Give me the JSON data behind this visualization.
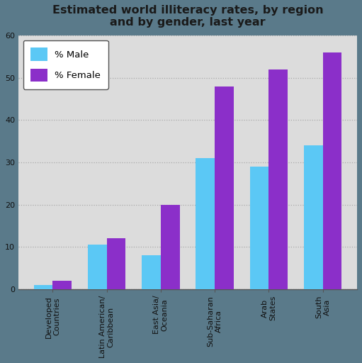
{
  "title": "Estimated world illiteracy rates, by region\nand by gender, last year",
  "categories": [
    "Developed\nCountries",
    "Latin American/\nCaribbean",
    "East Asia/\nOceania",
    "Sub-Saharan\nAfrica",
    "Arab\nStates",
    "South\nAsia"
  ],
  "male_values": [
    1,
    10.5,
    8,
    31,
    29,
    34
  ],
  "female_values": [
    2,
    12,
    20,
    48,
    52,
    56
  ],
  "male_color": "#5bc8f5",
  "female_color": "#8B2FC9",
  "legend_male": "% Male",
  "legend_female": "% Female",
  "ylim": [
    0,
    60
  ],
  "yticks": [
    0,
    10,
    20,
    30,
    40,
    50,
    60
  ],
  "outer_bg_color": "#5a7a8a",
  "plot_bg_color": "#dcdcdc",
  "title_fontsize": 11.5,
  "tick_fontsize": 8
}
